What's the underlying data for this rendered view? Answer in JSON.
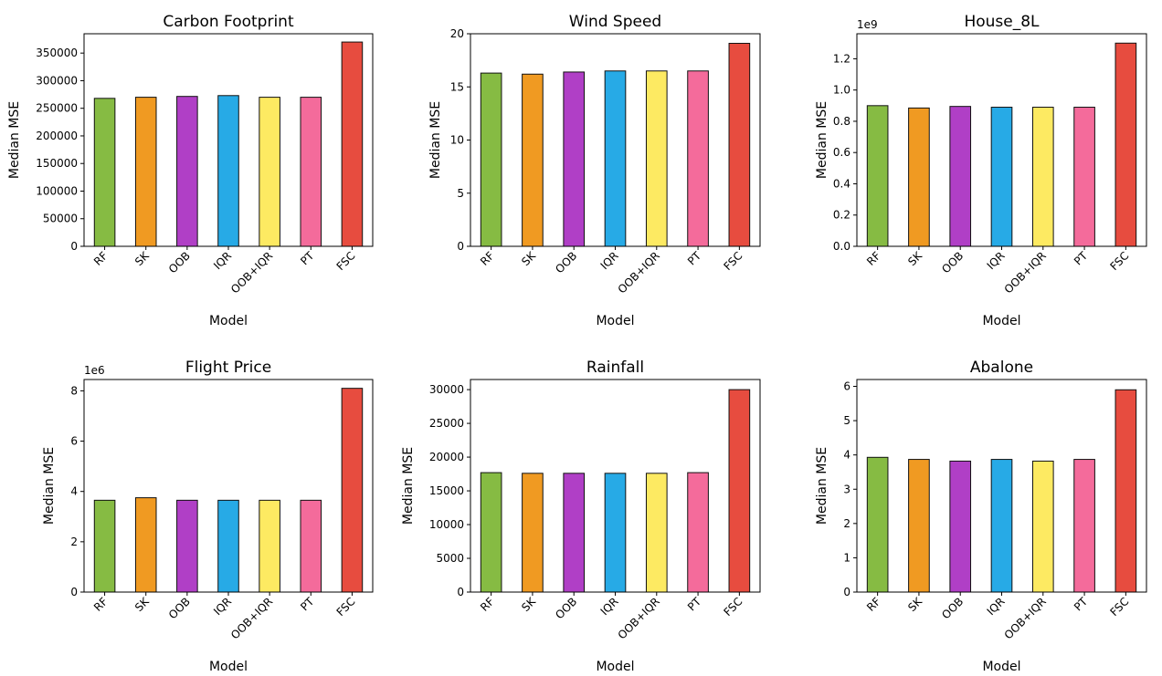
{
  "colors": [
    "#86bb43",
    "#f09a22",
    "#b03fc6",
    "#27aae6",
    "#fdea62",
    "#f46b9b",
    "#e74c3f"
  ],
  "edge_color": "#111111",
  "chart_data": [
    {
      "type": "bar",
      "title": "Carbon Footprint",
      "xlabel": "Model",
      "ylabel": "Median MSE",
      "categories": [
        "RF",
        "SK",
        "OOB",
        "IQR",
        "OOB+IQR",
        "PT",
        "FSC"
      ],
      "values": [
        268000,
        270000,
        271500,
        273000,
        270000,
        270000,
        370000
      ],
      "ylim": [
        0,
        385000
      ],
      "yticks": [
        0,
        50000,
        100000,
        150000,
        200000,
        250000,
        300000,
        350000
      ],
      "ytick_labels": [
        "0",
        "50000",
        "100000",
        "150000",
        "200000",
        "250000",
        "300000",
        "350000"
      ],
      "offset": ""
    },
    {
      "type": "bar",
      "title": "Wind Speed",
      "xlabel": "Model",
      "ylabel": "Median MSE",
      "categories": [
        "RF",
        "SK",
        "OOB",
        "IQR",
        "OOB+IQR",
        "PT",
        "FSC"
      ],
      "values": [
        16.3,
        16.2,
        16.4,
        16.5,
        16.5,
        16.5,
        19.1
      ],
      "ylim": [
        0,
        20
      ],
      "yticks": [
        0,
        5,
        10,
        15,
        20
      ],
      "ytick_labels": [
        "0",
        "5",
        "10",
        "15",
        "20"
      ],
      "offset": ""
    },
    {
      "type": "bar",
      "title": "House_8L",
      "xlabel": "Model",
      "ylabel": "Median MSE",
      "categories": [
        "RF",
        "SK",
        "OOB",
        "IQR",
        "OOB+IQR",
        "PT",
        "FSC"
      ],
      "values": [
        0.9,
        0.885,
        0.895,
        0.89,
        0.89,
        0.89,
        1.3
      ],
      "ylim": [
        0,
        1.36
      ],
      "yticks": [
        0,
        0.2,
        0.4,
        0.6,
        0.8,
        1.0,
        1.2
      ],
      "ytick_labels": [
        "0.0",
        "0.2",
        "0.4",
        "0.6",
        "0.8",
        "1.0",
        "1.2"
      ],
      "offset": "1e9"
    },
    {
      "type": "bar",
      "title": "Flight Price",
      "xlabel": "Model",
      "ylabel": "Median MSE",
      "categories": [
        "RF",
        "SK",
        "OOB",
        "IQR",
        "OOB+IQR",
        "PT",
        "FSC"
      ],
      "values": [
        3.65,
        3.75,
        3.65,
        3.65,
        3.65,
        3.65,
        8.1
      ],
      "ylim": [
        0,
        8.45
      ],
      "yticks": [
        0,
        2,
        4,
        6,
        8
      ],
      "ytick_labels": [
        "0",
        "2",
        "4",
        "6",
        "8"
      ],
      "offset": "1e6"
    },
    {
      "type": "bar",
      "title": "Rainfall",
      "xlabel": "Model",
      "ylabel": "Median MSE",
      "categories": [
        "RF",
        "SK",
        "OOB",
        "IQR",
        "OOB+IQR",
        "PT",
        "FSC"
      ],
      "values": [
        17700,
        17600,
        17600,
        17600,
        17600,
        17700,
        30000
      ],
      "ylim": [
        0,
        31500
      ],
      "yticks": [
        0,
        5000,
        10000,
        15000,
        20000,
        25000,
        30000
      ],
      "ytick_labels": [
        "0",
        "5000",
        "10000",
        "15000",
        "20000",
        "25000",
        "30000"
      ],
      "offset": ""
    },
    {
      "type": "bar",
      "title": "Abalone",
      "xlabel": "Model",
      "ylabel": "Median MSE",
      "categories": [
        "RF",
        "SK",
        "OOB",
        "IQR",
        "OOB+IQR",
        "PT",
        "FSC"
      ],
      "values": [
        3.93,
        3.87,
        3.82,
        3.87,
        3.82,
        3.87,
        5.9
      ],
      "ylim": [
        0,
        6.2
      ],
      "yticks": [
        0,
        1,
        2,
        3,
        4,
        5,
        6
      ],
      "ytick_labels": [
        "0",
        "1",
        "2",
        "3",
        "4",
        "5",
        "6"
      ],
      "offset": ""
    }
  ]
}
